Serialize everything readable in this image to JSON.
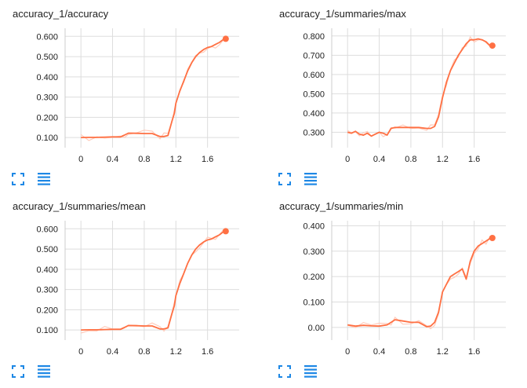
{
  "colors": {
    "series": "#ff7043",
    "smoothed_faint": "#ffccbc",
    "grid": "#dddddd",
    "axis": "#cccccc",
    "icon": "#1e88e5"
  },
  "icons": {
    "expand": "fullscreen-icon",
    "data": "data-table-icon"
  },
  "chart_data": [
    {
      "type": "line",
      "title": "accuracy_1/accuracy",
      "xlabel": "",
      "ylabel": "",
      "xlim": [
        -0.2,
        2.0
      ],
      "ylim": [
        0.05,
        0.64
      ],
      "xticks": [
        0,
        0.4,
        0.8,
        1.2,
        1.6
      ],
      "xtick_labels": [
        "0",
        "0.4",
        "0.8",
        "1.2",
        "1.6"
      ],
      "yticks": [
        0.1,
        0.2,
        0.3,
        0.4,
        0.5,
        0.6
      ],
      "ytick_labels": [
        "0.100",
        "0.200",
        "0.300",
        "0.400",
        "0.500",
        "0.600"
      ],
      "series": [
        {
          "name": "accuracy",
          "x": [
            0.0,
            0.1,
            0.2,
            0.3,
            0.4,
            0.5,
            0.55,
            0.6,
            0.7,
            0.8,
            0.9,
            1.0,
            1.05,
            1.1,
            1.15,
            1.18,
            1.2,
            1.25,
            1.3,
            1.35,
            1.4,
            1.45,
            1.5,
            1.55,
            1.6,
            1.65,
            1.7,
            1.75,
            1.8
          ],
          "y": [
            0.1,
            0.101,
            0.101,
            0.102,
            0.103,
            0.103,
            0.112,
            0.122,
            0.121,
            0.12,
            0.12,
            0.105,
            0.105,
            0.11,
            0.18,
            0.22,
            0.27,
            0.33,
            0.38,
            0.43,
            0.47,
            0.5,
            0.52,
            0.535,
            0.545,
            0.55,
            0.56,
            0.57,
            0.585
          ]
        }
      ],
      "last_point": {
        "x": 1.83,
        "y": 0.588
      }
    },
    {
      "type": "line",
      "title": "accuracy_1/summaries/max",
      "xlabel": "",
      "ylabel": "",
      "xlim": [
        -0.2,
        2.0
      ],
      "ylim": [
        0.22,
        0.84
      ],
      "xticks": [
        0,
        0.4,
        0.8,
        1.2,
        1.6
      ],
      "xtick_labels": [
        "0",
        "0.4",
        "0.8",
        "1.2",
        "1.6"
      ],
      "yticks": [
        0.3,
        0.4,
        0.5,
        0.6,
        0.7,
        0.8
      ],
      "ytick_labels": [
        "0.300",
        "0.400",
        "0.500",
        "0.600",
        "0.700",
        "0.800"
      ],
      "series": [
        {
          "name": "max",
          "x": [
            0.0,
            0.05,
            0.1,
            0.15,
            0.2,
            0.25,
            0.3,
            0.35,
            0.4,
            0.45,
            0.5,
            0.55,
            0.6,
            0.7,
            0.8,
            0.9,
            1.0,
            1.05,
            1.1,
            1.15,
            1.2,
            1.25,
            1.3,
            1.35,
            1.4,
            1.45,
            1.5,
            1.55,
            1.6,
            1.65,
            1.7,
            1.75,
            1.8
          ],
          "y": [
            0.3,
            0.295,
            0.305,
            0.29,
            0.285,
            0.295,
            0.28,
            0.29,
            0.3,
            0.295,
            0.285,
            0.32,
            0.325,
            0.325,
            0.325,
            0.325,
            0.32,
            0.32,
            0.33,
            0.38,
            0.48,
            0.56,
            0.62,
            0.66,
            0.7,
            0.73,
            0.76,
            0.78,
            0.78,
            0.785,
            0.78,
            0.77,
            0.75
          ]
        }
      ],
      "last_point": {
        "x": 1.83,
        "y": 0.75
      }
    },
    {
      "type": "line",
      "title": "accuracy_1/summaries/mean",
      "xlabel": "",
      "ylabel": "",
      "xlim": [
        -0.2,
        2.0
      ],
      "ylim": [
        0.05,
        0.64
      ],
      "xticks": [
        0,
        0.4,
        0.8,
        1.2,
        1.6
      ],
      "xtick_labels": [
        "0",
        "0.4",
        "0.8",
        "1.2",
        "1.6"
      ],
      "yticks": [
        0.1,
        0.2,
        0.3,
        0.4,
        0.5,
        0.6
      ],
      "ytick_labels": [
        "0.100",
        "0.200",
        "0.300",
        "0.400",
        "0.500",
        "0.600"
      ],
      "series": [
        {
          "name": "mean",
          "x": [
            0.0,
            0.1,
            0.2,
            0.3,
            0.4,
            0.5,
            0.55,
            0.6,
            0.7,
            0.8,
            0.9,
            1.0,
            1.05,
            1.1,
            1.15,
            1.18,
            1.2,
            1.25,
            1.3,
            1.35,
            1.4,
            1.45,
            1.5,
            1.55,
            1.6,
            1.65,
            1.7,
            1.75,
            1.8
          ],
          "y": [
            0.1,
            0.101,
            0.101,
            0.102,
            0.103,
            0.103,
            0.112,
            0.122,
            0.121,
            0.12,
            0.12,
            0.105,
            0.105,
            0.11,
            0.18,
            0.22,
            0.27,
            0.33,
            0.38,
            0.43,
            0.47,
            0.5,
            0.52,
            0.535,
            0.545,
            0.55,
            0.56,
            0.57,
            0.585
          ]
        }
      ],
      "last_point": {
        "x": 1.83,
        "y": 0.588
      }
    },
    {
      "type": "line",
      "title": "accuracy_1/summaries/min",
      "xlabel": "",
      "ylabel": "",
      "xlim": [
        -0.2,
        2.0
      ],
      "ylim": [
        -0.05,
        0.42
      ],
      "xticks": [
        0,
        0.4,
        0.8,
        1.2,
        1.6
      ],
      "xtick_labels": [
        "0",
        "0.4",
        "0.8",
        "1.2",
        "1.6"
      ],
      "yticks": [
        0.0,
        0.1,
        0.2,
        0.3,
        0.4
      ],
      "ytick_labels": [
        "0.00",
        "0.100",
        "0.200",
        "0.300",
        "0.400"
      ],
      "series": [
        {
          "name": "min",
          "x": [
            0.0,
            0.1,
            0.2,
            0.3,
            0.4,
            0.5,
            0.55,
            0.6,
            0.7,
            0.8,
            0.9,
            1.0,
            1.05,
            1.1,
            1.15,
            1.2,
            1.25,
            1.3,
            1.35,
            1.4,
            1.45,
            1.5,
            1.55,
            1.6,
            1.65,
            1.7,
            1.75,
            1.8
          ],
          "y": [
            0.01,
            0.005,
            0.008,
            0.006,
            0.005,
            0.01,
            0.02,
            0.03,
            0.025,
            0.02,
            0.02,
            0.003,
            0.005,
            0.02,
            0.06,
            0.14,
            0.17,
            0.2,
            0.21,
            0.22,
            0.23,
            0.19,
            0.26,
            0.3,
            0.32,
            0.33,
            0.34,
            0.35
          ]
        }
      ],
      "last_point": {
        "x": 1.83,
        "y": 0.352
      }
    }
  ]
}
